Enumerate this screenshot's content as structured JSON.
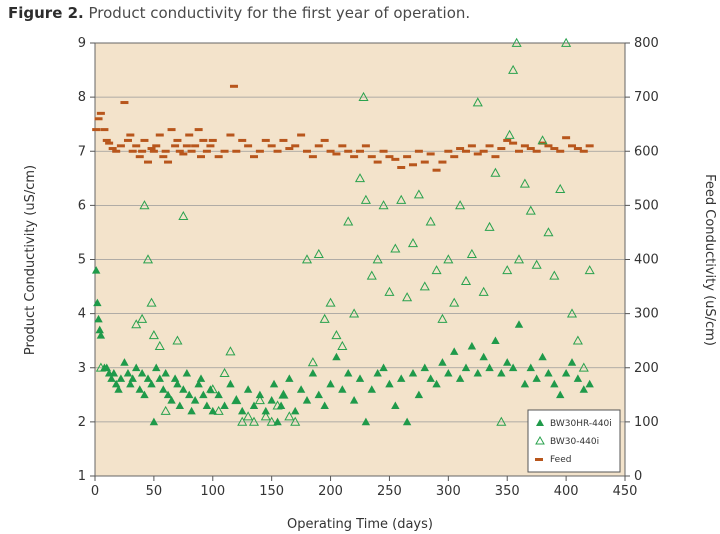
{
  "caption": {
    "label": "Figure 2.",
    "text": "Product conductivity for the first year of operation."
  },
  "chart_data": {
    "type": "scatter",
    "xlabel": "Operating Time (days)",
    "ylabel": "Product Conductivity (uS/cm)",
    "y2label": "Feed Conductivity (uS/cm)",
    "xlim": [
      0,
      450
    ],
    "ylim": [
      1,
      9
    ],
    "y2lim": [
      0,
      800
    ],
    "x_ticks": [
      0,
      50,
      100,
      150,
      200,
      250,
      300,
      350,
      400,
      450
    ],
    "y_ticks": [
      1,
      2,
      3,
      4,
      5,
      6,
      7,
      8,
      9
    ],
    "y2_ticks": [
      0,
      100,
      200,
      300,
      400,
      500,
      600,
      700,
      800
    ],
    "grid": "horizontal",
    "legend_position": "bottom-right",
    "colors": {
      "plot_background": "#f3e3cb",
      "gridline": "#9a9a9a",
      "bw30hr": "#1f9a4a",
      "bw30": "#2aa24e",
      "feed": "#b8561c"
    },
    "series": [
      {
        "name": "BW30HR-440i",
        "marker": "filled-triangle",
        "x": [
          1,
          2,
          3,
          4,
          5,
          8,
          10,
          12,
          14,
          16,
          18,
          20,
          22,
          25,
          28,
          30,
          32,
          35,
          38,
          40,
          42,
          45,
          48,
          50,
          52,
          55,
          58,
          60,
          62,
          65,
          68,
          70,
          72,
          75,
          78,
          80,
          82,
          85,
          88,
          90,
          92,
          95,
          98,
          100,
          105,
          110,
          115,
          120,
          125,
          130,
          135,
          140,
          145,
          150,
          152,
          155,
          158,
          160,
          165,
          170,
          175,
          180,
          185,
          190,
          195,
          200,
          205,
          210,
          215,
          220,
          225,
          230,
          235,
          240,
          245,
          250,
          255,
          260,
          265,
          270,
          275,
          280,
          285,
          290,
          295,
          300,
          305,
          310,
          315,
          320,
          325,
          330,
          335,
          340,
          345,
          350,
          355,
          360,
          365,
          370,
          375,
          380,
          385,
          390,
          395,
          400,
          405,
          410,
          415,
          420
        ],
        "y": [
          4.8,
          4.2,
          3.9,
          3.7,
          3.6,
          3.0,
          3.0,
          2.9,
          2.8,
          2.9,
          2.7,
          2.6,
          2.8,
          3.1,
          2.9,
          2.7,
          2.8,
          3.0,
          2.6,
          2.9,
          2.5,
          2.8,
          2.7,
          2.0,
          3.0,
          2.8,
          2.6,
          2.9,
          2.5,
          2.4,
          2.8,
          2.7,
          2.3,
          2.6,
          2.9,
          2.5,
          2.2,
          2.4,
          2.7,
          2.8,
          2.5,
          2.3,
          2.6,
          2.2,
          2.5,
          2.3,
          2.7,
          2.4,
          2.2,
          2.6,
          2.3,
          2.5,
          2.2,
          2.4,
          2.7,
          2.0,
          2.3,
          2.5,
          2.8,
          2.2,
          2.6,
          2.4,
          2.9,
          2.5,
          2.3,
          2.7,
          3.2,
          2.6,
          2.9,
          2.4,
          2.8,
          2.0,
          2.6,
          2.9,
          3.0,
          2.7,
          2.3,
          2.8,
          2.0,
          2.9,
          2.5,
          3.0,
          2.8,
          2.7,
          3.1,
          2.9,
          3.3,
          2.8,
          3.0,
          3.4,
          2.9,
          3.2,
          3.0,
          3.5,
          2.9,
          3.1,
          3.0,
          3.8,
          2.7,
          3.0,
          2.8,
          3.2,
          2.9,
          2.7,
          2.5,
          2.9,
          3.1,
          2.8,
          2.6,
          2.7
        ]
      },
      {
        "name": "BW30-440i",
        "marker": "open-triangle",
        "x": [
          5,
          35,
          40,
          42,
          45,
          48,
          50,
          55,
          60,
          70,
          75,
          100,
          105,
          110,
          115,
          120,
          125,
          130,
          135,
          140,
          145,
          150,
          155,
          160,
          165,
          170,
          180,
          185,
          190,
          195,
          200,
          205,
          210,
          215,
          220,
          225,
          228,
          230,
          235,
          240,
          245,
          250,
          255,
          260,
          265,
          270,
          275,
          280,
          285,
          290,
          295,
          300,
          305,
          310,
          315,
          320,
          325,
          330,
          335,
          340,
          345,
          350,
          352,
          355,
          358,
          360,
          365,
          370,
          375,
          380,
          385,
          390,
          395,
          400,
          405,
          410,
          415,
          420
        ],
        "y": [
          3.0,
          3.8,
          3.9,
          6.0,
          5.0,
          4.2,
          3.6,
          3.4,
          2.2,
          3.5,
          5.8,
          2.6,
          2.2,
          2.9,
          3.3,
          2.4,
          2.0,
          2.1,
          2.0,
          2.4,
          2.1,
          2.0,
          2.3,
          2.5,
          2.1,
          2.0,
          5.0,
          3.1,
          5.1,
          3.9,
          4.2,
          3.6,
          3.4,
          5.7,
          4.0,
          6.5,
          8.0,
          6.1,
          4.7,
          5.0,
          6.0,
          4.4,
          5.2,
          6.1,
          4.3,
          5.3,
          6.2,
          4.5,
          5.7,
          4.8,
          3.9,
          5.0,
          4.2,
          6.0,
          4.6,
          5.1,
          7.9,
          4.4,
          5.6,
          6.6,
          2.0,
          4.8,
          7.3,
          8.5,
          9.0,
          5.0,
          6.4,
          5.9,
          4.9,
          7.2,
          5.5,
          4.7,
          6.3,
          9.0,
          4.0,
          3.5,
          3.0,
          4.8
        ]
      },
      {
        "name": "Feed",
        "marker": "dash",
        "axis": "y2",
        "x": [
          1,
          3,
          5,
          8,
          10,
          12,
          15,
          18,
          22,
          25,
          28,
          30,
          32,
          35,
          38,
          40,
          42,
          45,
          48,
          50,
          52,
          55,
          58,
          60,
          62,
          65,
          68,
          70,
          72,
          75,
          78,
          80,
          82,
          85,
          88,
          90,
          92,
          95,
          98,
          100,
          105,
          110,
          115,
          118,
          120,
          125,
          130,
          135,
          140,
          145,
          150,
          155,
          160,
          165,
          170,
          175,
          180,
          185,
          190,
          195,
          200,
          205,
          210,
          215,
          220,
          225,
          230,
          235,
          240,
          245,
          250,
          255,
          260,
          265,
          270,
          275,
          280,
          285,
          290,
          295,
          300,
          305,
          310,
          315,
          320,
          325,
          330,
          335,
          340,
          345,
          350,
          355,
          360,
          365,
          370,
          375,
          380,
          385,
          390,
          395,
          400,
          405,
          410,
          415,
          420
        ],
        "y": [
          640,
          660,
          670,
          640,
          620,
          615,
          605,
          600,
          610,
          690,
          620,
          630,
          600,
          610,
          590,
          600,
          620,
          580,
          605,
          600,
          610,
          630,
          590,
          600,
          580,
          640,
          610,
          620,
          600,
          595,
          610,
          630,
          600,
          610,
          640,
          590,
          620,
          600,
          610,
          620,
          590,
          600,
          630,
          720,
          600,
          620,
          610,
          590,
          600,
          620,
          610,
          600,
          620,
          605,
          610,
          630,
          600,
          590,
          610,
          620,
          600,
          595,
          610,
          600,
          590,
          600,
          610,
          590,
          580,
          600,
          590,
          585,
          570,
          590,
          575,
          600,
          580,
          595,
          565,
          580,
          600,
          590,
          605,
          600,
          610,
          595,
          600,
          610,
          590,
          605,
          620,
          615,
          600,
          610,
          605,
          600,
          615,
          610,
          605,
          600,
          625,
          610,
          605,
          600,
          610
        ]
      }
    ]
  }
}
